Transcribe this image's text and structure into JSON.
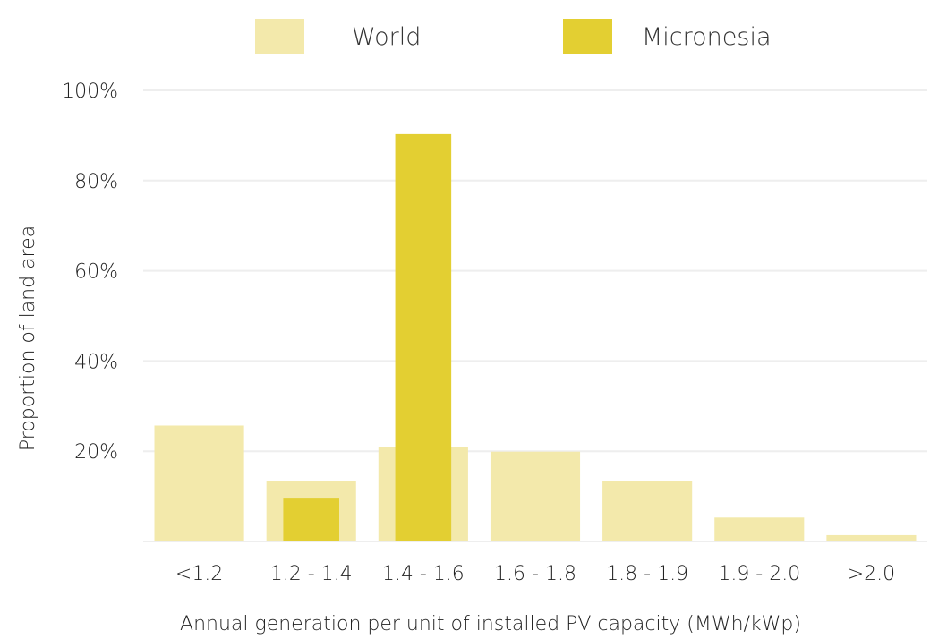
{
  "chart_data": {
    "type": "bar",
    "title": "",
    "xlabel": "Annual generation per unit of installed PV capacity (MWh/kWp)",
    "ylabel": "Proportion of land area",
    "ylim": [
      0,
      100
    ],
    "yticks": [
      20,
      40,
      60,
      80,
      100
    ],
    "ytick_labels": [
      "20%",
      "40%",
      "60%",
      "80%",
      "100%"
    ],
    "grid": true,
    "legend_position": "top-center",
    "categories": [
      "<1.2",
      "1.2 - 1.4",
      "1.4 - 1.6",
      "1.6 - 1.8",
      "1.8 - 1.9",
      "1.9 - 2.0",
      ">2.0"
    ],
    "series": [
      {
        "name": "World",
        "color": "#f3e9ab",
        "values": [
          25.7,
          13.4,
          21.0,
          19.9,
          13.4,
          5.3,
          1.4
        ]
      },
      {
        "name": "Micronesia",
        "color": "#e3cf32",
        "values": [
          0.2,
          9.5,
          90.3,
          0,
          0,
          0,
          0
        ]
      }
    ]
  }
}
